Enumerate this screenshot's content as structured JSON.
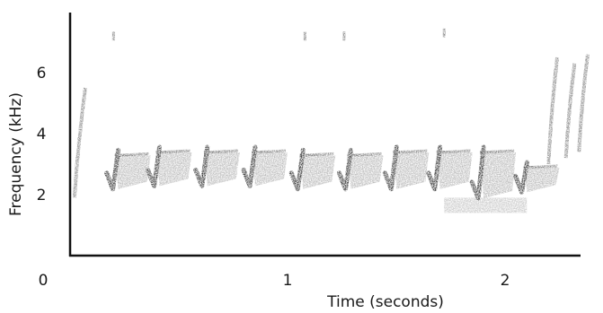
{
  "chart_data": {
    "type": "spectrogram",
    "title": "",
    "xlabel": "Time (seconds)",
    "ylabel": "Frequency (kHz)",
    "xlim": [
      0,
      2.4
    ],
    "ylim": [
      0,
      7.8
    ],
    "x_ticks": [
      {
        "value": 0,
        "label": "0"
      },
      {
        "value": 1,
        "label": "1"
      },
      {
        "value": 2,
        "label": "2"
      }
    ],
    "y_ticks": [
      {
        "value": 2,
        "label": "2"
      },
      {
        "value": 4,
        "label": "4"
      },
      {
        "value": 6,
        "label": "6"
      }
    ],
    "grid": false,
    "colors": {
      "axis": "#111111",
      "energy": "#2b2b2b",
      "text": "#1a1a1a"
    },
    "notes": [
      {
        "t": 0.18,
        "f_low": 2.3,
        "f_high": 3.4
      },
      {
        "t": 0.37,
        "f_low": 2.4,
        "f_high": 3.5
      },
      {
        "t": 0.59,
        "f_low": 2.4,
        "f_high": 3.5
      },
      {
        "t": 0.81,
        "f_low": 2.4,
        "f_high": 3.5
      },
      {
        "t": 1.03,
        "f_low": 2.3,
        "f_high": 3.4
      },
      {
        "t": 1.25,
        "f_low": 2.3,
        "f_high": 3.4
      },
      {
        "t": 1.46,
        "f_low": 2.3,
        "f_high": 3.5
      },
      {
        "t": 1.66,
        "f_low": 2.3,
        "f_high": 3.5
      },
      {
        "t": 1.86,
        "f_low": 2.0,
        "f_high": 3.5
      },
      {
        "t": 2.06,
        "f_low": 2.2,
        "f_high": 3.0
      }
    ],
    "other_energy": [
      {
        "kind": "streak",
        "t_start": 0.02,
        "t_end": 0.07,
        "f_low": 1.9,
        "f_high": 5.5
      },
      {
        "kind": "streak",
        "t_start": 2.2,
        "t_end": 2.24,
        "f_low": 3.0,
        "f_high": 6.5
      },
      {
        "kind": "streak",
        "t_start": 2.28,
        "t_end": 2.32,
        "f_low": 3.2,
        "f_high": 6.3
      },
      {
        "kind": "streak",
        "t_start": 2.34,
        "t_end": 2.38,
        "f_low": 3.4,
        "f_high": 6.6
      },
      {
        "kind": "haze",
        "t_start": 1.72,
        "t_end": 2.1,
        "f_low": 1.4,
        "f_high": 1.9
      },
      {
        "kind": "speck",
        "t": 0.2,
        "f": 7.2
      },
      {
        "kind": "speck",
        "t": 1.08,
        "f": 7.2
      },
      {
        "kind": "speck",
        "t": 1.26,
        "f": 7.2
      },
      {
        "kind": "speck",
        "t": 1.72,
        "f": 7.3
      }
    ]
  }
}
